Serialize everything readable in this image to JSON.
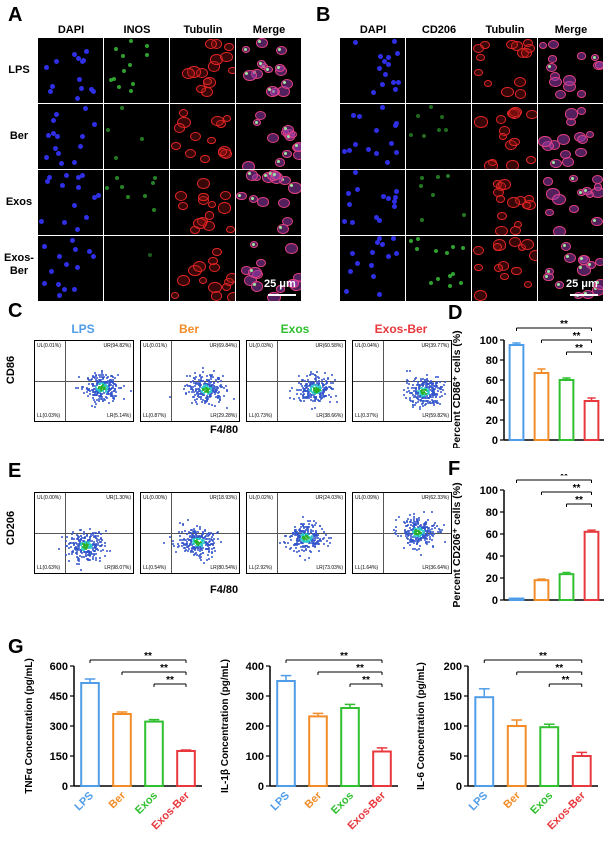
{
  "panels": {
    "a": "A",
    "b": "B",
    "c": "C",
    "d": "D",
    "e": "E",
    "f": "F",
    "g": "G"
  },
  "panelA": {
    "columns": [
      "DAPI",
      "INOS",
      "Tubulin",
      "Merge"
    ],
    "rows": [
      "LPS",
      "Ber",
      "Exos",
      "Exos-\nBer"
    ],
    "scale": "25 μm"
  },
  "panelB": {
    "columns": [
      "DAPI",
      "CD206",
      "Tubulin",
      "Merge"
    ],
    "scale": "25 μm"
  },
  "flowC": {
    "groups": [
      {
        "name": "LPS",
        "color": "#4f9de8",
        "UL": "UL(0.01%)",
        "UR": "UR(94.82%)",
        "LL": "LL(0.03%)",
        "LR": "LR(5.14%)"
      },
      {
        "name": "Ber",
        "color": "#f28c28",
        "UL": "UL(0.01%)",
        "UR": "UR(69.84%)",
        "LL": "LL(0.87%)",
        "LR": "LR(29.28%)"
      },
      {
        "name": "Exos",
        "color": "#2fbf2f",
        "UL": "UL(0.03%)",
        "UR": "UR(60.58%)",
        "LL": "LL(0.73%)",
        "LR": "LR(38.66%)"
      },
      {
        "name": "Exos-Ber",
        "color": "#e8383d",
        "UL": "UL(0.04%)",
        "UR": "UR(39.77%)",
        "LL": "LL(0.37%)",
        "LR": "LR(59.82%)"
      }
    ],
    "ylabel": "CD86",
    "xlabel": "F4/80"
  },
  "flowE": {
    "groups": [
      {
        "UL": "UL(0.00%)",
        "UR": "UR(1.30%)",
        "LL": "LL(0.63%)",
        "LR": "LR(98.07%)"
      },
      {
        "UL": "UL(0.00%)",
        "UR": "UR(18.93%)",
        "LL": "LL(0.54%)",
        "LR": "LR(80.54%)"
      },
      {
        "UL": "UL(0.02%)",
        "UR": "UR(24.03%)",
        "LL": "LL(2.92%)",
        "LR": "LR(73.03%)"
      },
      {
        "UL": "UL(0.09%)",
        "UR": "UR(62.33%)",
        "LL": "LL(1.64%)",
        "LR": "LR(36.64%)"
      }
    ],
    "ylabel": "CD206",
    "xlabel": "F4/80"
  },
  "colors": {
    "LPS": "#4f9de8",
    "Ber": "#f28c28",
    "Exos": "#2fbf2f",
    "ExosBer": "#e8383d"
  },
  "chart_data": [
    {
      "id": "D",
      "type": "bar",
      "categories": [
        "LPS",
        "Ber",
        "Exos",
        "Exos-Ber"
      ],
      "values": [
        95,
        67,
        60,
        39
      ],
      "errors": [
        2,
        4,
        2,
        3
      ],
      "ylabel": "Percent CD86⁺ cells (%)",
      "ylim": [
        0,
        100
      ],
      "yticks": [
        0,
        20,
        40,
        60,
        80,
        100
      ],
      "show_xticklabels": false,
      "sig": [
        "**",
        "**",
        "**"
      ]
    },
    {
      "id": "F",
      "type": "bar",
      "categories": [
        "LPS",
        "Ber",
        "Exos",
        "Exos-Ber"
      ],
      "values": [
        1.3,
        18,
        23.5,
        62
      ],
      "errors": [
        0.3,
        1,
        1.5,
        1.5
      ],
      "ylabel": "Percent CD206⁺ cells (%)",
      "ylim": [
        0,
        100
      ],
      "yticks": [
        0,
        20,
        40,
        60,
        80,
        100
      ],
      "show_xticklabels": false,
      "sig": [
        "**",
        "**",
        "**"
      ]
    },
    {
      "id": "G1",
      "type": "bar",
      "categories": [
        "LPS",
        "Ber",
        "Exos",
        "Exos-Ber"
      ],
      "values": [
        515,
        360,
        322,
        175
      ],
      "errors": [
        20,
        10,
        10,
        5
      ],
      "ylabel": "TNFα Concentration (pg/mL)",
      "ylim": [
        0,
        600
      ],
      "yticks": [
        0,
        150,
        300,
        450,
        600
      ],
      "show_xticklabels": true,
      "sig": [
        "**",
        "**",
        "**"
      ]
    },
    {
      "id": "G2",
      "type": "bar",
      "categories": [
        "LPS",
        "Ber",
        "Exos",
        "Exos-Ber"
      ],
      "values": [
        350,
        232,
        260,
        115
      ],
      "errors": [
        18,
        10,
        12,
        12
      ],
      "ylabel": "IL-1β Concentration (pg/mL)",
      "ylim": [
        0,
        400
      ],
      "yticks": [
        0,
        100,
        200,
        300,
        400
      ],
      "show_xticklabels": true,
      "sig": [
        "**",
        "**",
        "**"
      ]
    },
    {
      "id": "G3",
      "type": "bar",
      "categories": [
        "LPS",
        "Ber",
        "Exos",
        "Exos-Ber"
      ],
      "values": [
        148,
        100,
        98,
        50
      ],
      "errors": [
        14,
        10,
        5,
        6
      ],
      "ylabel": "IL-6 Concentration (pg/mL)",
      "ylim": [
        0,
        200
      ],
      "yticks": [
        0,
        50,
        100,
        150,
        200
      ],
      "show_xticklabels": true,
      "sig": [
        "**",
        "**",
        "**"
      ]
    }
  ]
}
